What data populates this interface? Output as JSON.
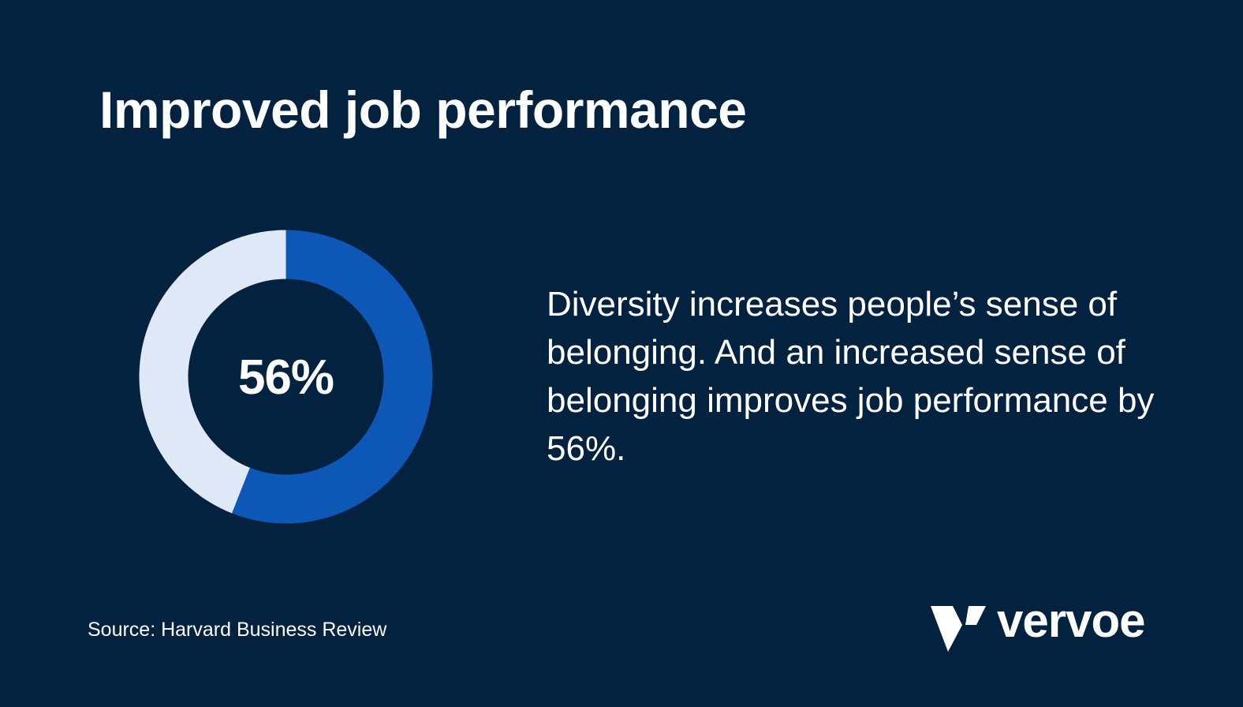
{
  "title": "Improved job performance",
  "chart_data": {
    "type": "pie",
    "variant": "donut",
    "values": [
      56,
      44
    ],
    "colors": [
      "#0d57b7",
      "#dfe8f6"
    ],
    "center_label": "56%"
  },
  "body_text": "Diversity increases people’s sense of belonging. And an increased sense of belonging improves job performance by 56%.",
  "source": "Source: Harvard Business Review",
  "brand": {
    "name": "vervoe",
    "icon": "vervoe-logo-icon"
  },
  "colors": {
    "background": "#03223f",
    "accent": "#0d57b7",
    "track": "#dfe8f6",
    "text": "#ffffff"
  }
}
